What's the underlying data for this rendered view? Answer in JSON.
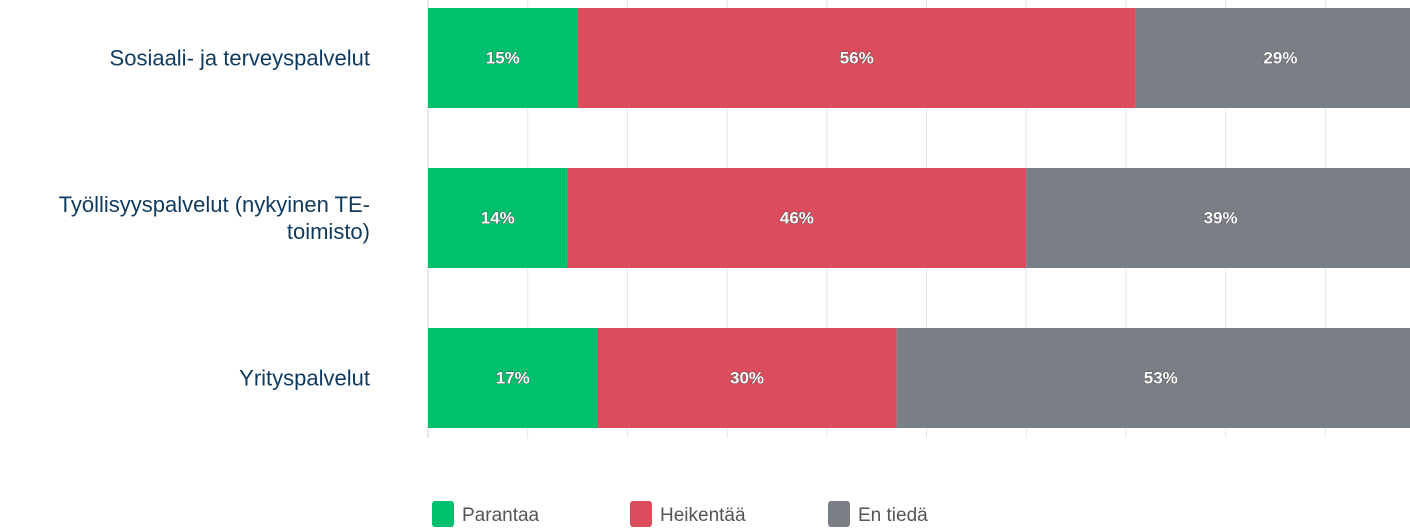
{
  "chart_data": {
    "type": "stacked_bar_horizontal",
    "categories": [
      "Sosiaali- ja terveyspalvelut",
      "Työllisyyspalvelut (nykyinen TE-toimisto)",
      "Yrityspalvelut"
    ],
    "series": [
      {
        "name": "Parantaa",
        "color": "#00c06e",
        "values": [
          15,
          14,
          17
        ],
        "value_labels": [
          "15%",
          "14%",
          "17%"
        ]
      },
      {
        "name": "Heikentää",
        "color": "#db4c5c",
        "values": [
          56,
          46,
          30
        ],
        "value_labels": [
          "56%",
          "46%",
          "30%"
        ]
      },
      {
        "name": "En tiedä",
        "color": "#7a7f86",
        "values": [
          29,
          39,
          53
        ],
        "value_labels": [
          "29%",
          "39%",
          "53%"
        ]
      }
    ],
    "xlim": [
      0,
      100
    ],
    "xticks": [
      0,
      10,
      20,
      30,
      40,
      50,
      60,
      70,
      80,
      90,
      100
    ],
    "grid": true,
    "legend": "bottom"
  }
}
